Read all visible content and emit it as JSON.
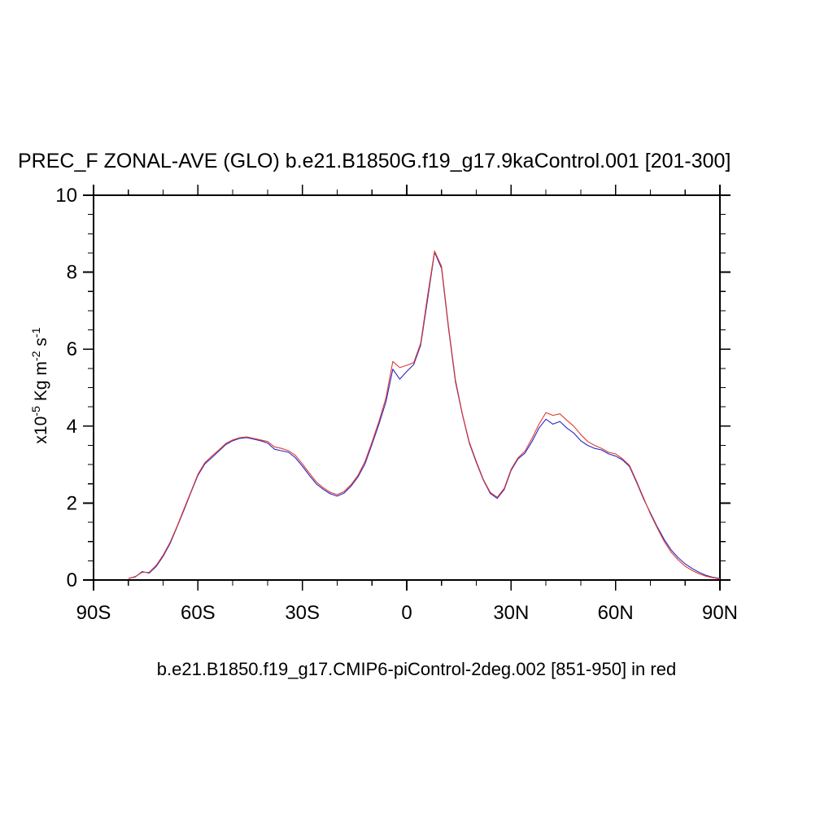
{
  "page": {
    "title": "PREC_F ZONAL-AVE (GLO) b.e21.B1850G.f19_g17.9kaControl.001 [201-300]",
    "subtitle": "b.e21.B1850.f19_g17.CMIP6-piControl-2deg.002 [851-950] in red"
  },
  "chart_data": {
    "type": "line",
    "title": "PREC_F ZONAL-AVE (GLO) b.e21.B1850G.f19_g17.9kaControl.001 [201-300]",
    "subtitle": "b.e21.B1850.f19_g17.CMIP6-piControl-2deg.002 [851-950] in red",
    "xlabel": "",
    "ylabel_text": "x10^-5 Kg m^-2 s^-1",
    "ylabel_parts": {
      "base1": "x10",
      "sup1": "-5",
      "base2": " Kg m",
      "sup2": "-2",
      "base3": " s",
      "sup3": "-1"
    },
    "xlim": [
      -90,
      90
    ],
    "ylim": [
      0,
      10
    ],
    "x_minor_step": 10,
    "y_minor_step": 0.5,
    "grid": false,
    "legend_position": "none",
    "frame_color": "#000000",
    "x_ticks": [
      {
        "value": -90,
        "label": "90S"
      },
      {
        "value": -60,
        "label": "60S"
      },
      {
        "value": -30,
        "label": "30S"
      },
      {
        "value": 0,
        "label": "0"
      },
      {
        "value": 30,
        "label": "30N"
      },
      {
        "value": 60,
        "label": "60N"
      },
      {
        "value": 90,
        "label": "90N"
      }
    ],
    "y_ticks": [
      {
        "value": 0,
        "label": "0"
      },
      {
        "value": 2,
        "label": "2"
      },
      {
        "value": 4,
        "label": "4"
      },
      {
        "value": 6,
        "label": "6"
      },
      {
        "value": 8,
        "label": "8"
      },
      {
        "value": 10,
        "label": "10"
      }
    ],
    "x": [
      -80,
      -78,
      -76,
      -74,
      -72,
      -70,
      -68,
      -66,
      -64,
      -62,
      -60,
      -58,
      -56,
      -54,
      -52,
      -50,
      -48,
      -46,
      -44,
      -42,
      -40,
      -38,
      -36,
      -34,
      -32,
      -30,
      -28,
      -26,
      -24,
      -22,
      -20,
      -18,
      -16,
      -14,
      -12,
      -10,
      -8,
      -6,
      -4,
      -2,
      0,
      2,
      4,
      6,
      8,
      10,
      12,
      14,
      16,
      18,
      20,
      22,
      24,
      26,
      28,
      30,
      32,
      34,
      36,
      38,
      40,
      42,
      44,
      46,
      48,
      50,
      52,
      54,
      56,
      58,
      60,
      62,
      64,
      66,
      68,
      70,
      72,
      74,
      76,
      78,
      80,
      82,
      84,
      86,
      88,
      90
    ],
    "series": [
      {
        "key": "blue",
        "name": "b.e21.B1850G.f19_g17.9kaControl.001 [201-300]",
        "color": "#2626c8",
        "values": [
          0.04,
          0.08,
          0.22,
          0.18,
          0.35,
          0.62,
          0.95,
          1.38,
          1.82,
          2.28,
          2.72,
          3.02,
          3.18,
          3.35,
          3.52,
          3.62,
          3.68,
          3.7,
          3.66,
          3.62,
          3.56,
          3.4,
          3.36,
          3.32,
          3.18,
          2.96,
          2.72,
          2.5,
          2.36,
          2.24,
          2.18,
          2.26,
          2.44,
          2.68,
          3.02,
          3.52,
          4.05,
          4.62,
          5.48,
          5.22,
          5.42,
          5.6,
          6.1,
          7.3,
          8.52,
          8.1,
          6.55,
          5.15,
          4.3,
          3.55,
          3.05,
          2.6,
          2.25,
          2.12,
          2.35,
          2.85,
          3.15,
          3.3,
          3.6,
          3.95,
          4.18,
          4.05,
          4.12,
          3.95,
          3.82,
          3.62,
          3.5,
          3.42,
          3.38,
          3.28,
          3.22,
          3.12,
          2.95,
          2.55,
          2.12,
          1.75,
          1.38,
          1.05,
          0.78,
          0.58,
          0.42,
          0.3,
          0.2,
          0.12,
          0.07,
          0.04
        ]
      },
      {
        "key": "red",
        "name": "b.e21.B1850.f19_g17.CMIP6-piControl-2deg.002 [851-950]",
        "color": "#e03a2d",
        "values": [
          0.04,
          0.09,
          0.2,
          0.2,
          0.38,
          0.65,
          0.98,
          1.4,
          1.85,
          2.3,
          2.75,
          3.05,
          3.22,
          3.38,
          3.55,
          3.64,
          3.7,
          3.72,
          3.68,
          3.64,
          3.6,
          3.46,
          3.42,
          3.36,
          3.24,
          3.02,
          2.78,
          2.55,
          2.4,
          2.28,
          2.22,
          2.3,
          2.48,
          2.72,
          3.08,
          3.58,
          4.12,
          4.72,
          5.68,
          5.52,
          5.58,
          5.65,
          6.15,
          7.4,
          8.55,
          8.15,
          6.6,
          5.2,
          4.32,
          3.58,
          3.08,
          2.62,
          2.28,
          2.15,
          2.38,
          2.88,
          3.18,
          3.35,
          3.68,
          4.05,
          4.35,
          4.28,
          4.32,
          4.15,
          4.0,
          3.78,
          3.6,
          3.5,
          3.42,
          3.32,
          3.28,
          3.15,
          2.98,
          2.58,
          2.15,
          1.72,
          1.35,
          1.0,
          0.72,
          0.52,
          0.36,
          0.25,
          0.16,
          0.1,
          0.06,
          0.03
        ]
      }
    ]
  }
}
